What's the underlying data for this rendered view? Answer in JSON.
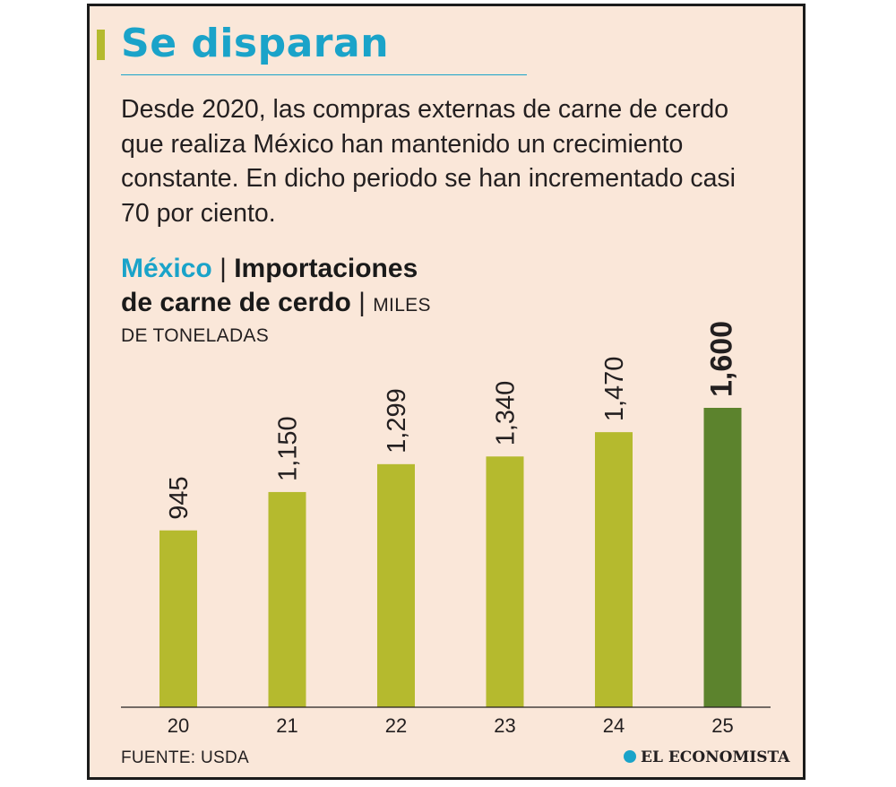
{
  "header": {
    "title": "Se disparan",
    "deck": "Desde 2020, las compras externas de carne de cerdo que realiza México han mantenido un crecimiento constante. En dicho periodo se han incrementado casi 70 por ciento."
  },
  "chart_heading": {
    "country": "México",
    "separator": "|",
    "subject_line1": "Importaciones",
    "subject_line2": "de carne de cerdo",
    "unit_line1": "MILES",
    "unit_line2": "DE TONELADAS"
  },
  "chart_data": {
    "type": "bar",
    "title": "Importaciones de carne de cerdo",
    "categories": [
      "20",
      "21",
      "22",
      "23",
      "24",
      "25"
    ],
    "values": [
      945,
      1150,
      1299,
      1340,
      1470,
      1600
    ],
    "value_labels": [
      "945",
      "1,150",
      "1,299",
      "1,340",
      "1,470",
      "1,600"
    ],
    "ylim": [
      0,
      1600
    ],
    "grid": false,
    "highlight_index": 5,
    "colors": {
      "bar": "#b5ba2e",
      "highlight": "#5c832d",
      "axis": "#231f20"
    }
  },
  "footer": {
    "source": "FUENTE: USDA",
    "brand": "EL ECONOMISTA",
    "brand_icon": "el-economista-logo-icon"
  }
}
